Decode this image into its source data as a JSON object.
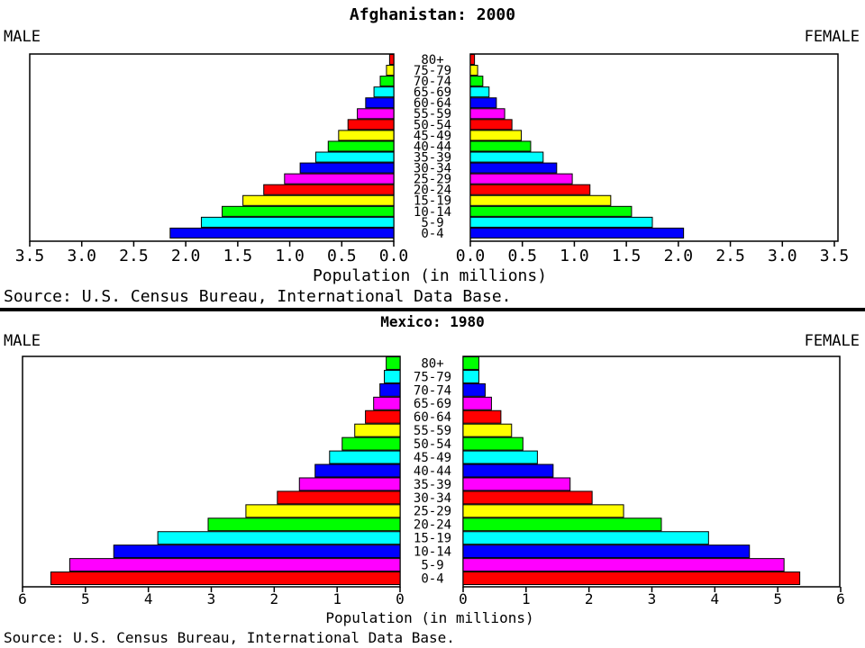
{
  "chart_data": [
    {
      "type": "bar",
      "subtype": "population-pyramid",
      "title": "Afghanistan: 2000",
      "left_label": "MALE",
      "right_label": "FEMALE",
      "xlabel": "Population (in millions)",
      "source": "Source: U.S. Census Bureau, International Data Base.",
      "xlim": [
        0,
        3.5
      ],
      "ticks": [
        "3.5",
        "3.0",
        "2.5",
        "2.0",
        "1.5",
        "1.0",
        "0.5",
        "0.0"
      ],
      "tick_values": [
        3.5,
        3.0,
        2.5,
        2.0,
        1.5,
        1.0,
        0.5,
        0.0
      ],
      "right_ticks": [
        "0.0",
        "0.5",
        "1.0",
        "1.5",
        "2.0",
        "2.5",
        "3.0",
        "3.5"
      ],
      "right_tick_values": [
        0.0,
        0.5,
        1.0,
        1.5,
        2.0,
        2.5,
        3.0,
        3.5
      ],
      "categories": [
        "0-4",
        "5-9",
        "10-14",
        "15-19",
        "20-24",
        "25-29",
        "30-34",
        "35-39",
        "40-44",
        "45-49",
        "50-54",
        "55-59",
        "60-64",
        "65-69",
        "70-74",
        "75-79",
        "80+"
      ],
      "series": [
        {
          "name": "MALE",
          "values": [
            2.15,
            1.85,
            1.65,
            1.45,
            1.25,
            1.05,
            0.9,
            0.75,
            0.63,
            0.53,
            0.44,
            0.35,
            0.27,
            0.19,
            0.13,
            0.07,
            0.04
          ]
        },
        {
          "name": "FEMALE",
          "values": [
            2.05,
            1.75,
            1.55,
            1.35,
            1.15,
            0.98,
            0.83,
            0.7,
            0.58,
            0.49,
            0.4,
            0.33,
            0.25,
            0.18,
            0.12,
            0.07,
            0.04
          ]
        }
      ],
      "bar_colors": [
        "#0000ff",
        "#00ffff",
        "#00ff00",
        "#ffff00",
        "#ff0000",
        "#ff00ff"
      ]
    },
    {
      "type": "bar",
      "subtype": "population-pyramid",
      "title": "Mexico: 1980",
      "left_label": "MALE",
      "right_label": "FEMALE",
      "xlabel": "Population (in millions)",
      "source": "Source: U.S. Census Bureau, International Data Base.",
      "xlim": [
        0,
        6
      ],
      "ticks": [
        "6",
        "5",
        "4",
        "3",
        "2",
        "1",
        "0"
      ],
      "tick_values": [
        6,
        5,
        4,
        3,
        2,
        1,
        0
      ],
      "right_ticks": [
        "0",
        "1",
        "2",
        "3",
        "4",
        "5",
        "6"
      ],
      "right_tick_values": [
        0,
        1,
        2,
        3,
        4,
        5,
        6
      ],
      "categories": [
        "0-4",
        "5-9",
        "10-14",
        "15-19",
        "20-24",
        "25-29",
        "30-34",
        "35-39",
        "40-44",
        "45-49",
        "50-54",
        "55-59",
        "60-64",
        "65-69",
        "70-74",
        "75-79",
        "80+"
      ],
      "series": [
        {
          "name": "MALE",
          "values": [
            5.55,
            5.25,
            4.55,
            3.85,
            3.05,
            2.45,
            1.95,
            1.6,
            1.35,
            1.12,
            0.92,
            0.72,
            0.55,
            0.42,
            0.32,
            0.25,
            0.22
          ]
        },
        {
          "name": "FEMALE",
          "values": [
            5.35,
            5.1,
            4.55,
            3.9,
            3.15,
            2.55,
            2.05,
            1.7,
            1.43,
            1.18,
            0.95,
            0.77,
            0.6,
            0.45,
            0.35,
            0.25,
            0.25
          ]
        }
      ],
      "bar_colors": [
        "#ff0000",
        "#ff00ff",
        "#0000ff",
        "#00ffff",
        "#00ff00",
        "#ffff00"
      ]
    }
  ]
}
